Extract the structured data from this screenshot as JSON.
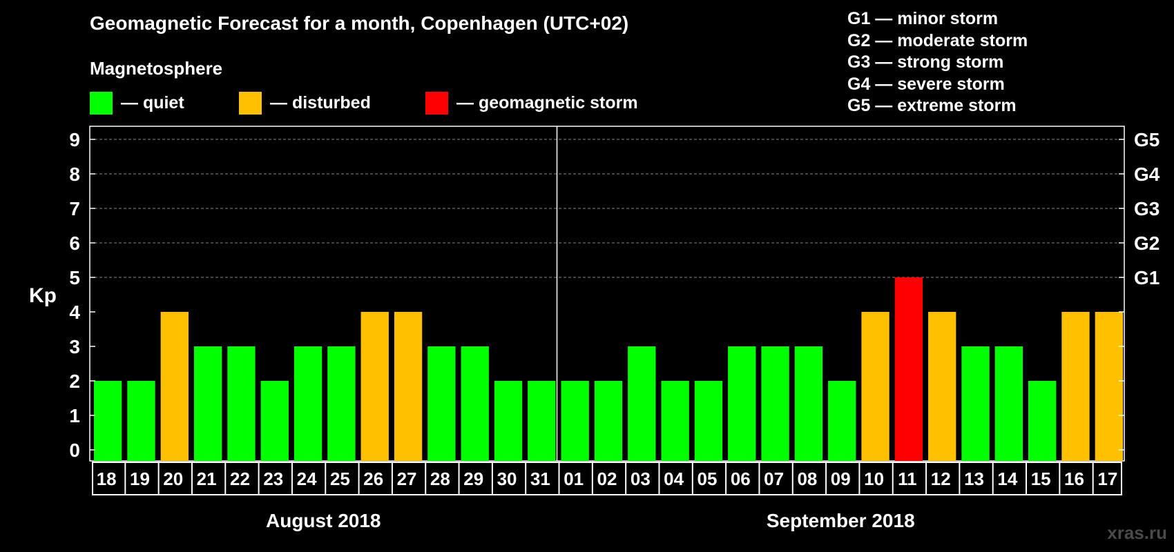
{
  "title": "Geomagnetic Forecast for a month, Copenhagen (UTC+02)",
  "legend": {
    "heading": "Magnetosphere",
    "items": [
      {
        "label": "— quiet",
        "color": "#00ff00"
      },
      {
        "label": "— disturbed",
        "color": "#ffc000"
      },
      {
        "label": "— geomagnetic storm",
        "color": "#ff0000"
      }
    ]
  },
  "storm_scale": [
    "G1 — minor storm",
    "G2 — moderate storm",
    "G3 — strong storm",
    "G4 — severe storm",
    "G5 — extreme storm"
  ],
  "watermark": "xras.ru",
  "chart_data": {
    "type": "bar",
    "ylabel": "Kp",
    "ylim": [
      0,
      9
    ],
    "yticks": [
      "0",
      "1",
      "2",
      "3",
      "4",
      "5",
      "6",
      "7",
      "8",
      "9"
    ],
    "right_ticks": [
      {
        "value": 5,
        "label": "G1"
      },
      {
        "value": 6,
        "label": "G2"
      },
      {
        "value": 7,
        "label": "G3"
      },
      {
        "value": 8,
        "label": "G4"
      },
      {
        "value": 9,
        "label": "G5"
      }
    ],
    "grid": "horizontal dashed at 5-9",
    "categories": [
      "18",
      "19",
      "20",
      "21",
      "22",
      "23",
      "24",
      "25",
      "26",
      "27",
      "28",
      "29",
      "30",
      "31",
      "01",
      "02",
      "03",
      "04",
      "05",
      "06",
      "07",
      "08",
      "09",
      "10",
      "11",
      "12",
      "13",
      "14",
      "15",
      "16",
      "17"
    ],
    "values": [
      2,
      2,
      4,
      3,
      3,
      2,
      3,
      3,
      4,
      4,
      3,
      3,
      2,
      2,
      2,
      2,
      3,
      2,
      2,
      3,
      3,
      3,
      2,
      4,
      5,
      4,
      3,
      3,
      2,
      4,
      4
    ],
    "colors": {
      "quiet": "#00ff00",
      "disturbed": "#ffc000",
      "storm": "#ff0000"
    },
    "months": [
      {
        "label": "August 2018",
        "days": 14
      },
      {
        "label": "September 2018",
        "days": 17
      }
    ]
  }
}
